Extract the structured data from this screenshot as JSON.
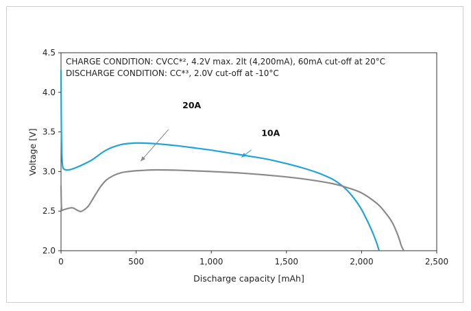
{
  "chart_data": {
    "type": "line",
    "title": "",
    "xlabel": "Discharge capacity [mAh]",
    "ylabel": "Voltage [V]",
    "xlim": [
      0,
      2500
    ],
    "ylim": [
      2.0,
      4.5
    ],
    "x_ticks": [
      "0",
      "500",
      "1,000",
      "1,500",
      "2,000",
      "2,500"
    ],
    "x_tick_values": [
      0,
      500,
      1000,
      1500,
      2000,
      2500
    ],
    "y_ticks": [
      "2.0",
      "2.5",
      "3.0",
      "3.5",
      "4.0",
      "4.5"
    ],
    "y_tick_values": [
      2.0,
      2.5,
      3.0,
      3.5,
      4.0,
      4.5
    ],
    "grid": false,
    "annotations": [
      "CHARGE CONDITION: CVCC*², 4.2V max. 2lt (4,200mA), 60mA cut-off at 20°C",
      "DISCHARGE CONDITION: CC*³, 2.0V cut-off at -10°C"
    ],
    "series": [
      {
        "name": "10A",
        "color": "#1fa3dc",
        "label_pos": [
          1395,
          3.45
        ],
        "arrow_from": [
          1265,
          3.27
        ],
        "arrow_to": [
          1200,
          3.18
        ],
        "x": [
          0,
          2,
          5,
          10,
          20,
          50,
          100,
          200,
          300,
          400,
          500,
          600,
          700,
          800,
          900,
          1000,
          1100,
          1200,
          1300,
          1400,
          1500,
          1600,
          1700,
          1800,
          1850,
          1900,
          1950,
          2000,
          2050,
          2080,
          2100,
          2115
        ],
        "y": [
          4.28,
          3.6,
          3.25,
          3.08,
          3.03,
          3.02,
          3.05,
          3.14,
          3.27,
          3.34,
          3.36,
          3.355,
          3.34,
          3.32,
          3.295,
          3.27,
          3.24,
          3.21,
          3.18,
          3.145,
          3.1,
          3.05,
          2.99,
          2.91,
          2.85,
          2.77,
          2.66,
          2.52,
          2.33,
          2.2,
          2.1,
          2.01
        ]
      },
      {
        "name": "20A",
        "color": "#8a8a8a",
        "label_pos": [
          870,
          3.8
        ],
        "arrow_from": [
          715,
          3.53
        ],
        "arrow_to": [
          530,
          3.13
        ],
        "x": [
          0,
          2,
          5,
          10,
          20,
          40,
          60,
          80,
          100,
          120,
          140,
          180,
          220,
          260,
          300,
          350,
          400,
          450,
          500,
          550,
          600,
          700,
          800,
          1000,
          1200,
          1400,
          1600,
          1800,
          1900,
          2000,
          2100,
          2150,
          2200,
          2230,
          2250,
          2265,
          2278
        ],
        "y": [
          2.82,
          2.6,
          2.52,
          2.51,
          2.52,
          2.53,
          2.54,
          2.54,
          2.52,
          2.5,
          2.5,
          2.56,
          2.68,
          2.8,
          2.89,
          2.95,
          2.985,
          3.0,
          3.01,
          3.015,
          3.02,
          3.02,
          3.015,
          3.0,
          2.98,
          2.95,
          2.91,
          2.85,
          2.8,
          2.73,
          2.6,
          2.5,
          2.37,
          2.25,
          2.15,
          2.06,
          2.01
        ]
      }
    ]
  }
}
